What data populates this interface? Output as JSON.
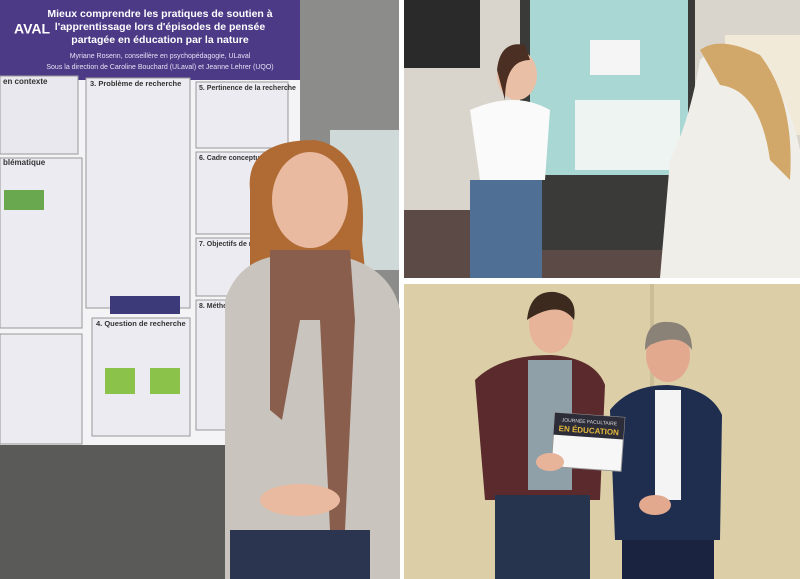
{
  "poster": {
    "logo": "AVAL",
    "title": [
      "Mieux comprendre les pratiques de soutien à",
      "l'apprentissage lors d'épisodes de pensée",
      "partagée en éducation par la nature"
    ],
    "authors": "Myriane Rosenn, conseillère en psychopédagogie, ULaval",
    "supervision": "Sous la direction de Caroline Bouchard (ULaval) et Jeanne Lehrer (UQO)",
    "sections": [
      "en contexte",
      "3. Problème de recherche",
      "5. Pertinence de la recherche",
      "blématique",
      "6. Cadre conceptuel anticipé",
      "7. Objectifs de recherche",
      "8. Méthodo",
      "4. Question de recherche"
    ]
  },
  "certificate": {
    "line1": "JOURNÉE FACULTAIRE",
    "line2": "EN ÉDUCATION"
  }
}
